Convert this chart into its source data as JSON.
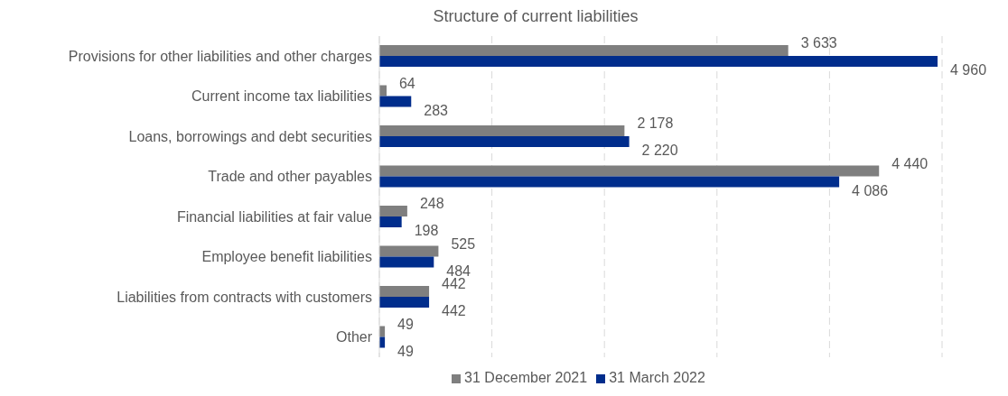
{
  "chart_data": {
    "type": "bar",
    "orientation": "horizontal",
    "title": "Structure of current liabilities",
    "categories": [
      "Provisions for other liabilities and other charges",
      "Current income tax liabilities",
      "Loans, borrowings and debt securities",
      "Trade and other payables",
      "Financial liabilities at fair value",
      "Employee benefit liabilities ",
      "Liabilities from contracts with customers",
      "Other"
    ],
    "series": [
      {
        "name": "31 December 2021",
        "color": "#7f7f7f",
        "values": [
          3633,
          64,
          2178,
          4440,
          248,
          525,
          442,
          49
        ],
        "value_labels": [
          "3 633",
          "64",
          "2 178",
          "4 440",
          "248",
          "525",
          "442",
          "49"
        ]
      },
      {
        "name": "31 March 2022",
        "color": "#002d8c",
        "values": [
          4960,
          283,
          2220,
          4086,
          198,
          484,
          442,
          49
        ],
        "value_labels": [
          "4 960",
          "283",
          "2 220",
          "4 086",
          "198",
          "484",
          "442",
          "49"
        ]
      }
    ],
    "xlim": [
      0,
      5000
    ],
    "tick_labels": "y",
    "grid": "x",
    "legend": "bottom"
  }
}
